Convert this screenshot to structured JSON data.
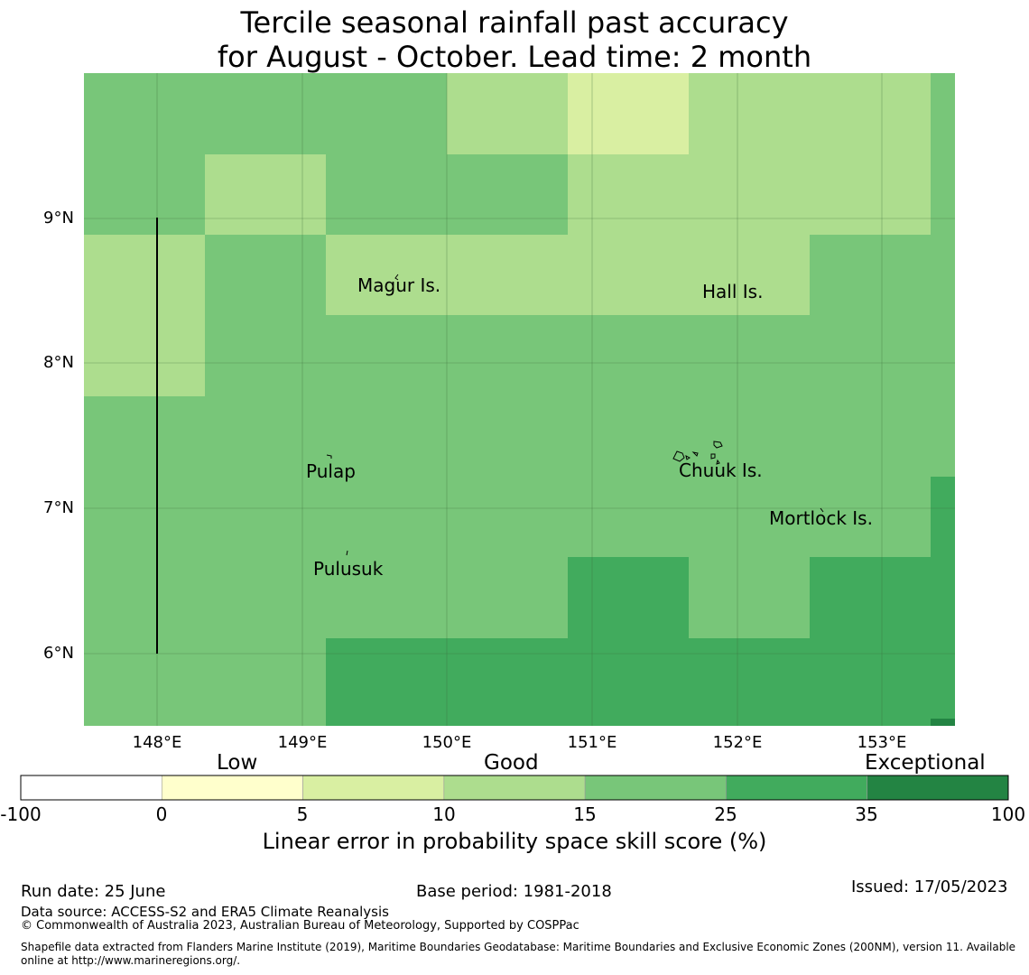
{
  "title": {
    "line1": "Tercile seasonal rainfall past accuracy",
    "line2": "for August - October. Lead time: 2 month"
  },
  "map": {
    "lat_ticks": [
      "9°N",
      "8°N",
      "7°N",
      "6°N"
    ],
    "lon_ticks": [
      "148°E",
      "149°E",
      "150°E",
      "151°E",
      "152°E",
      "153°E"
    ],
    "places": [
      {
        "name": "Magur Is."
      },
      {
        "name": "Hall Is."
      },
      {
        "name": "Pulap"
      },
      {
        "name": "Chuuk Is."
      },
      {
        "name": "Mortlock Is."
      },
      {
        "name": "Pulusuk"
      }
    ],
    "colors": {
      "cat_5_10": "#d9efa2",
      "cat_10_15": "#addd8e",
      "cat_15_25": "#78c679",
      "cat_25_35": "#41ab5d",
      "cat_35_100": "#238443"
    },
    "grid_categories": [
      [
        "15_25",
        "15_25",
        "15_25",
        "10_15",
        "5_10",
        "10_15",
        "10_15",
        "15_25"
      ],
      [
        "15_25",
        "10_15",
        "15_25",
        "15_25",
        "10_15",
        "10_15",
        "10_15",
        "15_25"
      ],
      [
        "10_15",
        "15_25",
        "10_15",
        "10_15",
        "10_15",
        "10_15",
        "15_25",
        "15_25"
      ],
      [
        "10_15",
        "15_25",
        "15_25",
        "15_25",
        "15_25",
        "15_25",
        "15_25",
        "15_25"
      ],
      [
        "15_25",
        "15_25",
        "15_25",
        "15_25",
        "15_25",
        "15_25",
        "15_25",
        "15_25"
      ],
      [
        "15_25",
        "15_25",
        "15_25",
        "15_25",
        "15_25",
        "15_25",
        "15_25",
        "25_35"
      ],
      [
        "15_25",
        "15_25",
        "15_25",
        "15_25",
        "25_35",
        "15_25",
        "25_35",
        "25_35"
      ],
      [
        "15_25",
        "15_25",
        "25_35",
        "25_35",
        "25_35",
        "25_35",
        "25_35",
        "25_35"
      ]
    ]
  },
  "colorbar": {
    "categories": [
      "Low",
      "Good",
      "Exceptional"
    ],
    "ticks": [
      "-100",
      "0",
      "5",
      "10",
      "15",
      "25",
      "35",
      "100"
    ],
    "colors": [
      "#ffffff",
      "#ffffcc",
      "#d9efa2",
      "#addd8e",
      "#78c679",
      "#41ab5d",
      "#238443"
    ],
    "label": "Linear error in probability space skill score (%)"
  },
  "footer": {
    "run_date": "Run date: 25 June",
    "base_period": "Base period: 1981-2018",
    "issued": "Issued: 17/05/2023",
    "data_source": "Data source: ACCESS-S2 and ERA5 Climate Reanalysis",
    "copyright": "© Commonwealth of Australia 2023, Australian Bureau of Meteorology, Supported by COSPPac",
    "shapefile": "Shapefile data extracted from Flanders Marine Institute (2019), Maritime Boundaries Geodatabase: Maritime Boundaries and Exclusive Economic Zones (200NM), version 11. Available",
    "shapefile_2": "online at http://www.marineregions.org/."
  }
}
